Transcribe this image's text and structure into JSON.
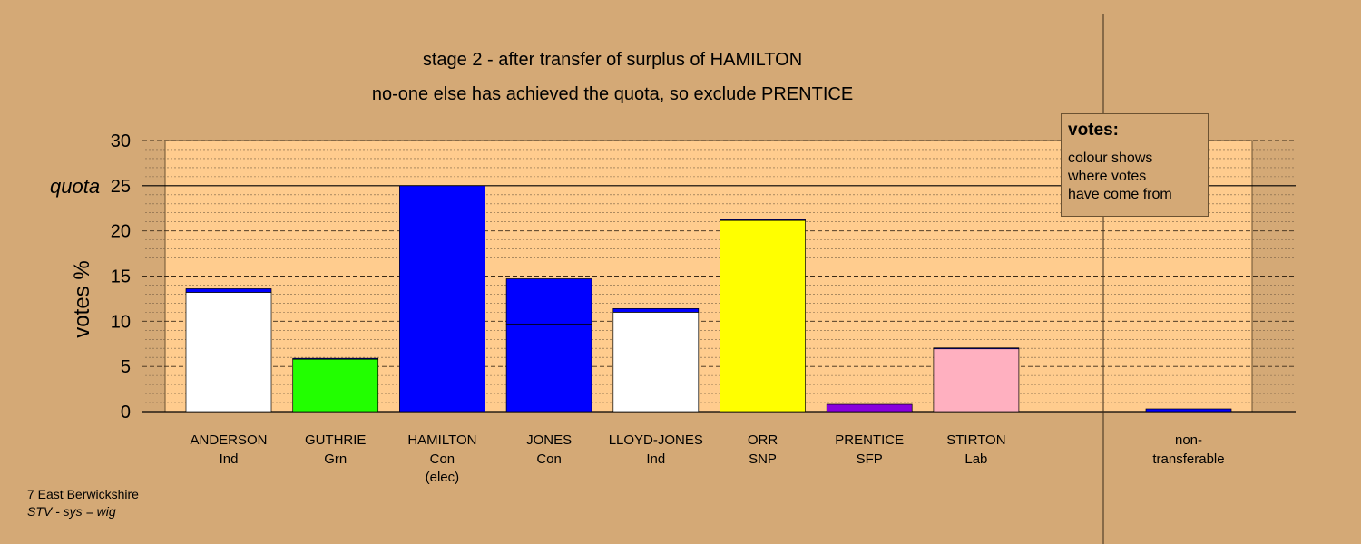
{
  "chart_data": {
    "type": "bar",
    "title_lines": [
      "stage 2 - after transfer of surplus of HAMILTON",
      "no-one else has achieved the quota, so exclude PRENTICE"
    ],
    "ylabel": "votes %",
    "ylim": [
      0,
      30
    ],
    "yticks": [
      "0",
      "5",
      "10",
      "15",
      "20",
      "25",
      "30"
    ],
    "quota": {
      "label": "quota",
      "value": 25
    },
    "grid": true,
    "candidates": [
      {
        "name": "ANDERSON",
        "party": "Ind",
        "note": "",
        "segments": [
          {
            "value": 13.2,
            "color": "#ffffff"
          },
          {
            "value": 0.4,
            "color": "#0000ff"
          }
        ]
      },
      {
        "name": "GUTHRIE",
        "party": "Grn",
        "note": "",
        "segments": [
          {
            "value": 5.8,
            "color": "#22ff00"
          },
          {
            "value": 0.1,
            "color": "#0000ff"
          }
        ]
      },
      {
        "name": "HAMILTON",
        "party": "Con",
        "note": "(elec)",
        "segments": [
          {
            "value": 25,
            "color": "#0000ff"
          }
        ]
      },
      {
        "name": "JONES",
        "party": "Con",
        "note": "",
        "segments": [
          {
            "value": 9.7,
            "color": "#0000ff"
          },
          {
            "value": 5.0,
            "color": "#0000ff"
          }
        ]
      },
      {
        "name": "LLOYD-JONES",
        "party": "Ind",
        "note": "",
        "segments": [
          {
            "value": 11.0,
            "color": "#ffffff"
          },
          {
            "value": 0.4,
            "color": "#0000ff"
          }
        ]
      },
      {
        "name": "ORR",
        "party": "SNP",
        "note": "",
        "segments": [
          {
            "value": 21.2,
            "color": "#ffff00"
          },
          {
            "value": 0.05,
            "color": "#0000ff"
          }
        ]
      },
      {
        "name": "PRENTICE",
        "party": "SFP",
        "note": "",
        "segments": [
          {
            "value": 0.8,
            "color": "#8800dd"
          }
        ]
      },
      {
        "name": "STIRTON",
        "party": "Lab",
        "note": "",
        "segments": [
          {
            "value": 7.0,
            "color": "#ffb0c0"
          },
          {
            "value": 0.05,
            "color": "#0000ff"
          }
        ]
      }
    ],
    "non_transferable": {
      "label_line1": "non-",
      "label_line2": "transferable",
      "value": 0.3,
      "color": "#0000ff"
    }
  },
  "legend": {
    "title": "votes:",
    "text": "colour shows\nwhere votes\nhave come from"
  },
  "footer": {
    "ward": "7 East Berwickshire",
    "system": "STV - sys = wig"
  }
}
